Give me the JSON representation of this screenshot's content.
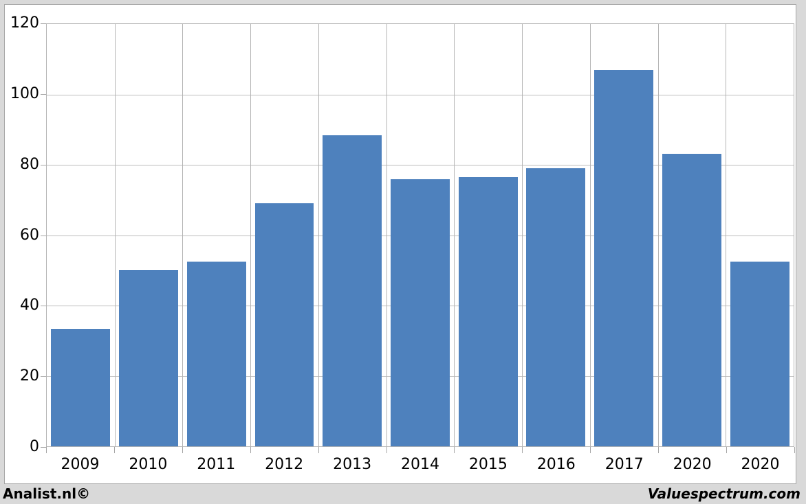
{
  "chart_data": {
    "type": "bar",
    "categories": [
      "2009",
      "2010",
      "2011",
      "2012",
      "2013",
      "2014",
      "2015",
      "2016",
      "2017",
      "2020",
      "2020"
    ],
    "values": [
      33.4,
      50.2,
      52.4,
      69.1,
      88.3,
      76.0,
      76.4,
      79.0,
      107.0,
      83.1,
      52.4
    ],
    "title": "",
    "xlabel": "",
    "ylabel": "",
    "ylim": [
      0,
      120
    ],
    "yticks": [
      0,
      20,
      40,
      60,
      80,
      100,
      120
    ],
    "grid": true,
    "legend": "none",
    "bar_color": "#4e81bd",
    "gridline_color": "#bcbcbc",
    "plot_background": "#ffffff",
    "page_background": "#d9d9d9"
  },
  "footer": {
    "left": "Analist.nl©",
    "right": "Valuespectrum.com"
  }
}
